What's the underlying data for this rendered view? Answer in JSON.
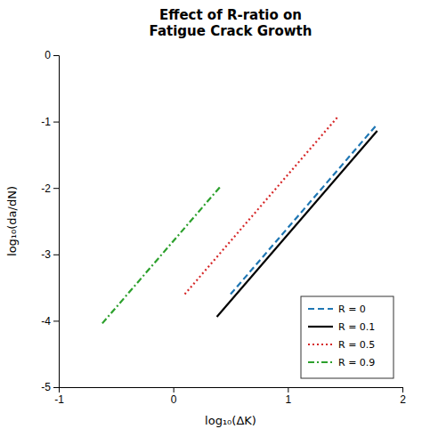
{
  "chart_data": {
    "type": "line",
    "title": "Effect of R-ratio on\nFatigue Crack Growth",
    "x_label": "log₁₀(ΔK)",
    "y_label": "log₁₀(da/dN)",
    "xlim": [
      -1,
      2
    ],
    "ylim": [
      -5,
      0
    ],
    "xticks": [
      -1,
      0,
      1,
      2
    ],
    "yticks": [
      -5,
      -4,
      -3,
      -2,
      -1,
      0
    ],
    "grid": false,
    "legend": "lower right",
    "series": [
      {
        "name": "R = 0",
        "color": "#1f77b4",
        "line_style": "dashed",
        "x": [
          0.5,
          1.78
        ],
        "values": [
          -3.6,
          -1.04
        ]
      },
      {
        "name": "R = 0.1",
        "color": "#000000",
        "line_style": "solid",
        "x": [
          0.38,
          1.78
        ],
        "values": [
          -3.94,
          -1.14
        ]
      },
      {
        "name": "R = 0.5",
        "color": "#d62728",
        "line_style": "dotted",
        "x": [
          0.1,
          1.43
        ],
        "values": [
          -3.6,
          -0.94
        ]
      },
      {
        "name": "R = 0.9",
        "color": "#2ca02c",
        "line_style": "dashdot",
        "x": [
          -0.62,
          0.42
        ],
        "values": [
          -4.04,
          -1.96
        ]
      }
    ]
  }
}
